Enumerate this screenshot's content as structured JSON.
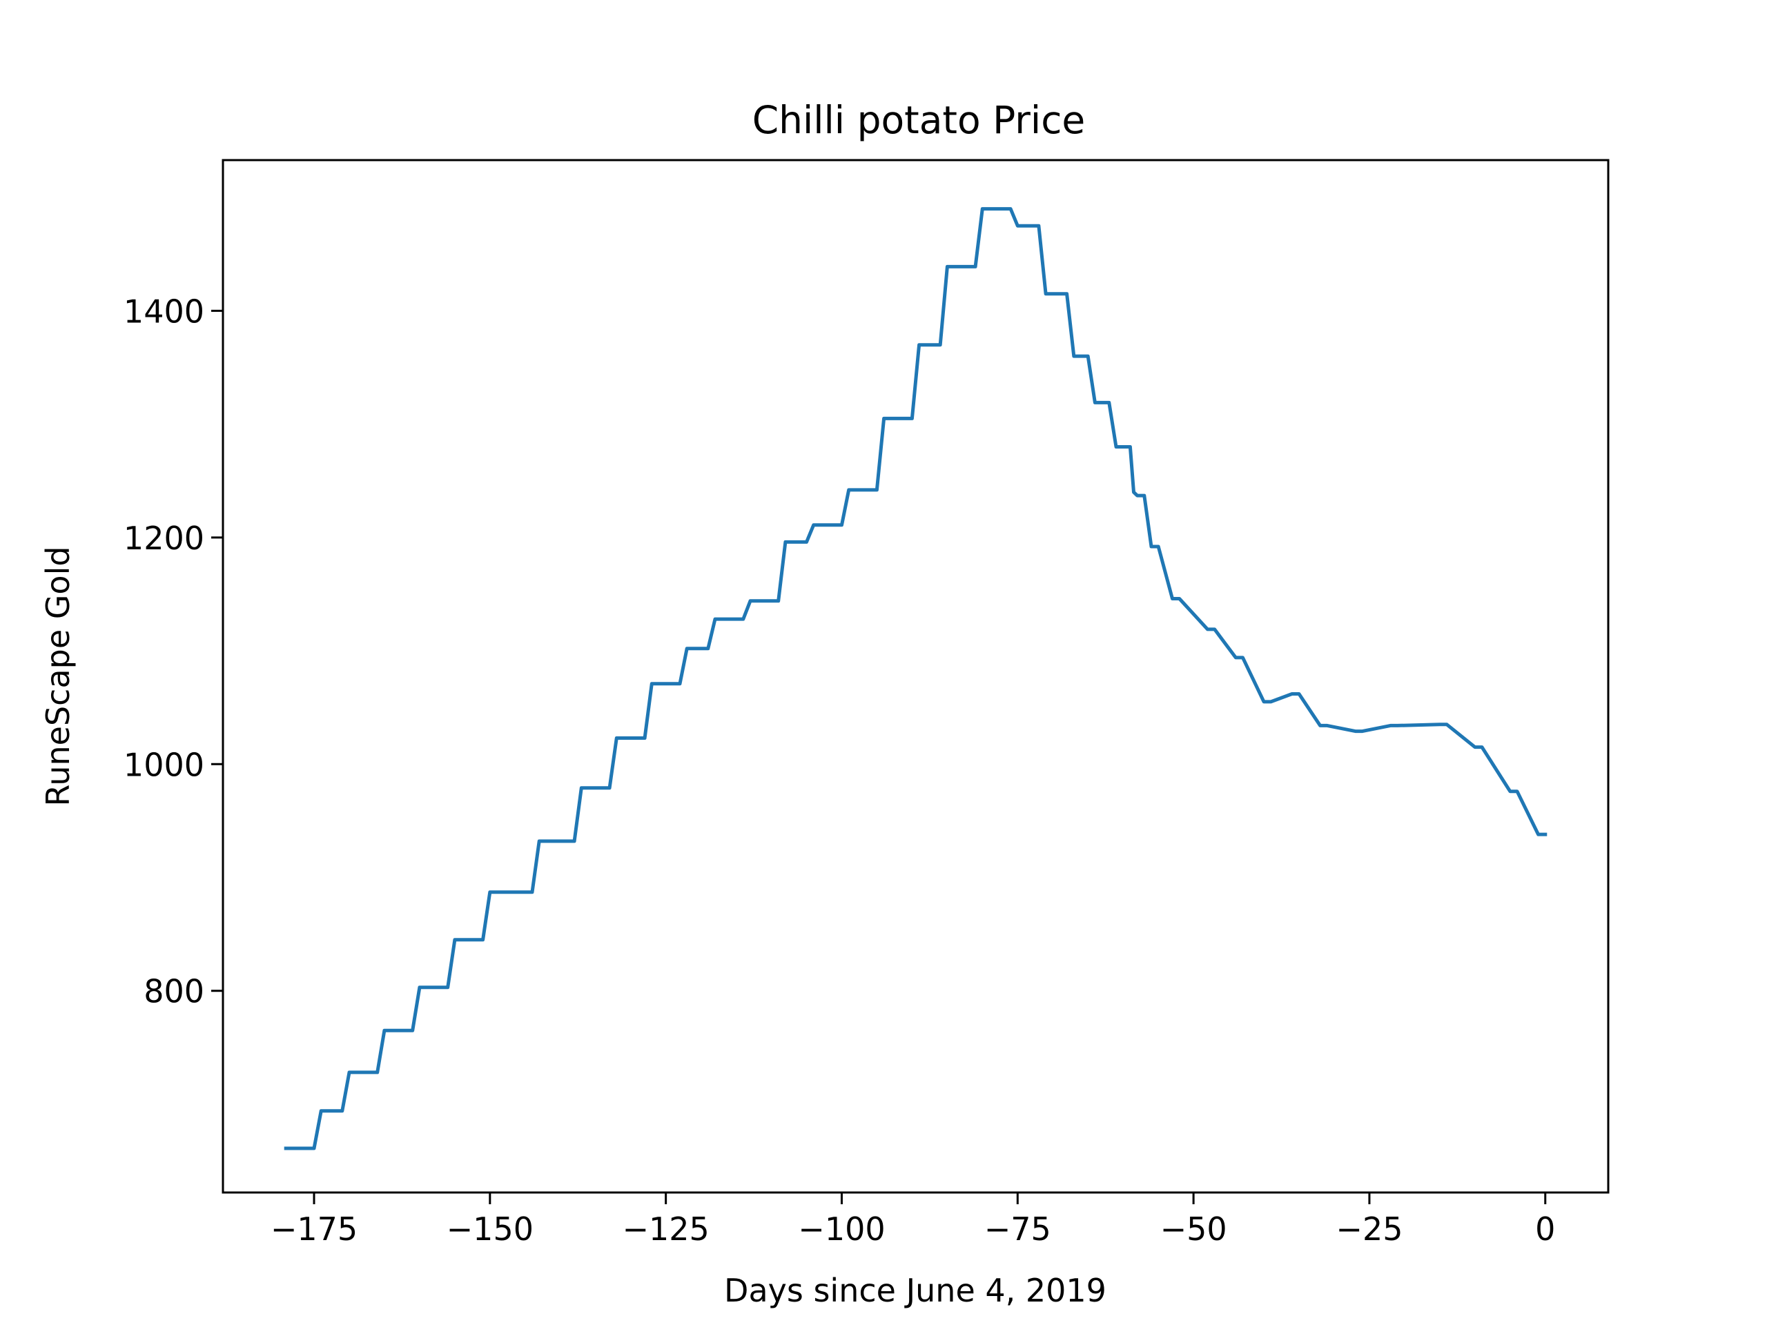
{
  "chart_data": {
    "type": "line",
    "title": "Chilli potato Price",
    "xlabel": "Days since June 4, 2019",
    "ylabel": "RuneScape Gold",
    "xlim": [
      -187.95,
      8.95
    ],
    "ylim": [
      622,
      1533
    ],
    "grid": false,
    "x_ticks": [
      -175,
      -150,
      -125,
      -100,
      -75,
      -50,
      -25,
      0
    ],
    "x_tick_labels": [
      "−175",
      "−150",
      "−125",
      "−100",
      "−75",
      "−50",
      "−25",
      "0"
    ],
    "y_ticks": [
      800,
      1000,
      1200,
      1400
    ],
    "y_tick_labels": [
      "800",
      "1000",
      "1200",
      "1400"
    ],
    "line_color": "#1f77b4",
    "series": [
      {
        "x": [
          -179,
          -175,
          -174,
          -171,
          -170,
          -166,
          -165,
          -161,
          -160,
          -156,
          -155,
          -151,
          -150,
          -144,
          -143,
          -138,
          -137,
          -133,
          -132,
          -128,
          -127,
          -123,
          -122,
          -119,
          -118,
          -114,
          -113,
          -109,
          -108,
          -105,
          -104,
          -100,
          -99,
          -95,
          -94,
          -90,
          -89,
          -86,
          -85,
          -81,
          -80,
          -76,
          -75,
          -72,
          -71,
          -68,
          -67,
          -65,
          -64,
          -62,
          -61,
          -59,
          -58.5,
          -58,
          -57,
          -56,
          -55,
          -53,
          -52,
          -48,
          -47,
          -44,
          -43,
          -40,
          -39,
          -36,
          -35,
          -32,
          -31,
          -27,
          -26,
          -22,
          -21,
          -15,
          -14,
          -10,
          -9,
          -5,
          -4,
          -1,
          0
        ],
        "y": [
          661,
          661,
          694,
          694,
          728,
          728,
          765,
          765,
          803,
          803,
          845,
          845,
          887,
          887,
          932,
          932,
          979,
          979,
          1023,
          1023,
          1071,
          1071,
          1102,
          1102,
          1128,
          1128,
          1144,
          1144,
          1196,
          1196,
          1211,
          1211,
          1242,
          1242,
          1305,
          1305,
          1370,
          1370,
          1439,
          1439,
          1490,
          1490,
          1475,
          1475,
          1415,
          1415,
          1360,
          1360,
          1319,
          1319,
          1280,
          1280,
          1240,
          1237,
          1237,
          1192,
          1192,
          1146,
          1146,
          1119,
          1119,
          1094,
          1094,
          1055,
          1055,
          1062,
          1062,
          1034,
          1034,
          1029,
          1029,
          1034,
          1034,
          1035,
          1035,
          1015,
          1015,
          976,
          976,
          938,
          938
        ]
      }
    ]
  }
}
